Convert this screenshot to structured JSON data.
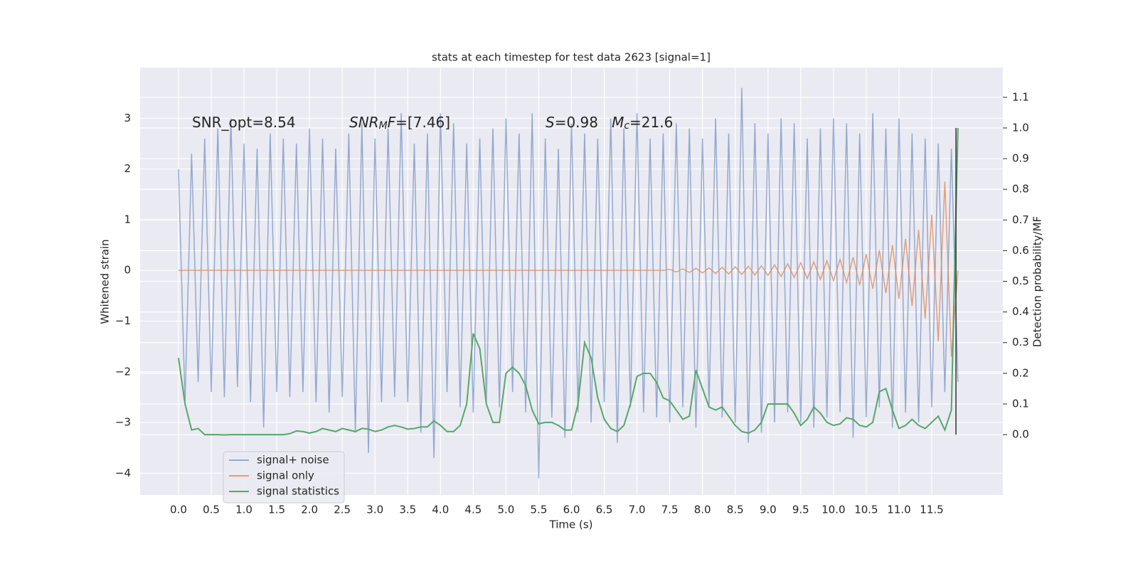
{
  "chart_data": {
    "type": "line",
    "title": "stats at each timestep for test data 2623 [signal=1]",
    "x_label": "Time (s)",
    "y_label": "Whitened strain",
    "y2_label": "Detection probability/MF",
    "background": "#eaeaf2",
    "grid": true,
    "legend": "lower left",
    "xlim": [
      -0.586,
      12.586
    ],
    "ylim": [
      -4.43,
      4.0
    ],
    "y2lim": [
      -0.197,
      1.197
    ],
    "xticks": [
      {
        "value": 0,
        "label": "0.0"
      },
      0.5,
      {
        "value": 1,
        "label": "1.0"
      },
      1.5,
      {
        "value": 2,
        "label": "2.0"
      },
      2.5,
      {
        "value": 3,
        "label": "3.0"
      },
      3.5,
      {
        "value": 4,
        "label": "4.0"
      },
      4.5,
      {
        "value": 5,
        "label": "5.0"
      },
      5.5,
      {
        "value": 6,
        "label": "6.0"
      },
      6.5,
      {
        "value": 7,
        "label": "7.0"
      },
      7.5,
      {
        "value": 8,
        "label": "8.0"
      },
      8.5,
      {
        "value": 9,
        "label": "9.0"
      },
      9.5,
      {
        "value": 10,
        "label": "10.0"
      },
      10.5,
      {
        "value": 11,
        "label": "11.0"
      },
      11.5
    ],
    "yticks": [
      {
        "value": -4,
        "label": "−4"
      },
      {
        "value": -3,
        "label": "−3"
      },
      {
        "value": -2,
        "label": "−2"
      },
      {
        "value": -1,
        "label": "−1"
      },
      0,
      1,
      2,
      3
    ],
    "y2ticks": [
      {
        "value": 0,
        "label": "0.0"
      },
      0.1,
      0.2,
      0.3,
      0.4,
      0.5,
      0.6,
      0.7,
      0.8,
      0.9,
      {
        "value": 1,
        "label": "1.0"
      },
      1.1
    ],
    "annotations": [
      {
        "parts": [
          {
            "text": "SNR_opt=8.54"
          }
        ]
      },
      {
        "parts": [
          {
            "text": "SNR",
            "italic": true
          },
          {
            "text": "M",
            "italic": true,
            "sub": true
          },
          {
            "text": "F",
            "italic": true
          },
          {
            "text": "=[7.46]"
          }
        ]
      },
      {
        "parts": [
          {
            "text": "S",
            "italic": true
          },
          {
            "text": "=0.98   "
          },
          {
            "text": "M",
            "italic": true
          },
          {
            "text": "c",
            "italic": true,
            "sub": true
          },
          {
            "text": "=21.6"
          }
        ]
      }
    ],
    "vline": {
      "x": 11.87,
      "y2range": [
        0,
        1
      ],
      "color": "#333333"
    },
    "x": [
      0.0,
      0.1,
      0.2,
      0.3,
      0.4,
      0.5,
      0.6,
      0.7,
      0.8,
      0.9,
      1.0,
      1.1,
      1.2,
      1.3,
      1.4,
      1.5,
      1.6,
      1.7,
      1.8,
      1.9,
      2.0,
      2.1,
      2.2,
      2.3,
      2.4,
      2.5,
      2.6,
      2.7,
      2.8,
      2.9,
      3.0,
      3.1,
      3.2,
      3.3,
      3.4,
      3.5,
      3.6,
      3.7,
      3.8,
      3.9,
      4.0,
      4.1,
      4.2,
      4.3,
      4.4,
      4.5,
      4.6,
      4.7,
      4.8,
      4.9,
      5.0,
      5.1,
      5.2,
      5.3,
      5.4,
      5.5,
      5.6,
      5.7,
      5.8,
      5.9,
      6.0,
      6.1,
      6.2,
      6.3,
      6.4,
      6.5,
      6.6,
      6.7,
      6.8,
      6.9,
      7.0,
      7.1,
      7.2,
      7.3,
      7.4,
      7.5,
      7.6,
      7.7,
      7.8,
      7.9,
      8.0,
      8.1,
      8.2,
      8.3,
      8.4,
      8.5,
      8.6,
      8.7,
      8.8,
      8.9,
      9.0,
      9.1,
      9.2,
      9.3,
      9.4,
      9.5,
      9.6,
      9.7,
      9.8,
      9.9,
      10.0,
      10.1,
      10.2,
      10.3,
      10.4,
      10.5,
      10.6,
      10.7,
      10.8,
      10.9,
      11.0,
      11.1,
      11.2,
      11.3,
      11.4,
      11.5,
      11.6,
      11.7,
      11.8,
      11.9
    ],
    "series": [
      {
        "name": "signal+ noise",
        "color": "#4c72b0",
        "opacity": 0.55,
        "values": [
          2.0,
          -2.6,
          2.3,
          -2.2,
          2.6,
          -2.4,
          2.8,
          -2.5,
          3.0,
          -2.3,
          2.5,
          -2.6,
          2.4,
          -3.1,
          2.7,
          -2.4,
          2.6,
          -2.5,
          2.5,
          -2.4,
          2.8,
          -2.6,
          2.6,
          -2.8,
          2.4,
          -2.5,
          2.7,
          -3.2,
          2.9,
          -3.6,
          2.6,
          -2.6,
          2.8,
          -2.5,
          3.1,
          -2.6,
          2.5,
          -3.2,
          2.7,
          -3.7,
          3.1,
          -2.4,
          2.9,
          -2.7,
          2.5,
          -2.8,
          2.6,
          -2.6,
          2.8,
          -2.7,
          3.0,
          -2.4,
          2.7,
          -2.8,
          3.1,
          -4.1,
          2.6,
          -2.9,
          2.4,
          -3.3,
          2.9,
          -2.8,
          2.7,
          -3.0,
          2.6,
          -2.6,
          3.0,
          -3.4,
          2.8,
          -2.7,
          3.1,
          -2.8,
          2.6,
          -2.9,
          2.7,
          -3.0,
          2.9,
          -2.7,
          2.8,
          -3.1,
          2.6,
          -2.7,
          3.0,
          -2.9,
          2.7,
          -3.0,
          3.6,
          -3.4,
          2.9,
          -3.2,
          2.7,
          -3.0,
          3.0,
          -2.8,
          2.9,
          -3.0,
          2.6,
          -3.1,
          2.8,
          -2.9,
          3.0,
          -2.8,
          2.9,
          -3.3,
          2.7,
          -2.9,
          3.1,
          -2.7,
          2.8,
          -3.1,
          3.0,
          -2.8,
          2.7,
          -3.0,
          2.6,
          -2.7,
          2.5,
          -2.4,
          2.4,
          -2.2
        ]
      },
      {
        "name": "signal only",
        "color": "#dd8452",
        "opacity": 0.75,
        "values": [
          0,
          0,
          0,
          0,
          0,
          0,
          0,
          0,
          0,
          0,
          0,
          0,
          0,
          0,
          0,
          0,
          0,
          0,
          0,
          0,
          0,
          0,
          0,
          0,
          0,
          0,
          0,
          0,
          0,
          0,
          0,
          0,
          0,
          0,
          0,
          0,
          0,
          0,
          0,
          0,
          0,
          0,
          0,
          0,
          0,
          0,
          0,
          0,
          0,
          0,
          0,
          0,
          0,
          0,
          0,
          0,
          0,
          0,
          0,
          0,
          0,
          0,
          0,
          0,
          0,
          0,
          0,
          0,
          0,
          0,
          0,
          0,
          0,
          0,
          0,
          0.02,
          -0.03,
          0.03,
          -0.04,
          0.04,
          -0.05,
          0.05,
          -0.06,
          0.06,
          -0.07,
          0.07,
          -0.08,
          0.08,
          -0.09,
          0.09,
          -0.1,
          0.11,
          -0.12,
          0.13,
          -0.14,
          0.15,
          -0.16,
          0.17,
          -0.18,
          0.19,
          -0.2,
          0.22,
          -0.24,
          0.26,
          -0.29,
          0.32,
          -0.36,
          0.4,
          -0.45,
          0.5,
          -0.56,
          0.62,
          -0.7,
          0.8,
          -0.95,
          1.1,
          -1.4,
          1.75,
          -1.7,
          0
        ]
      },
      {
        "name": "signal statistics",
        "color": "#55a868",
        "opacity": 1,
        "axis": "y2",
        "values": [
          0.25,
          0.1,
          0.015,
          0.02,
          0.0,
          0.0,
          0.0,
          -0.001,
          0.0,
          0.0,
          0.0,
          0.0,
          0.0,
          0.0,
          0.0,
          0.0,
          0.0,
          0.003,
          0.012,
          0.01,
          0.005,
          0.01,
          0.02,
          0.015,
          0.01,
          0.02,
          0.015,
          0.01,
          0.02,
          0.018,
          0.01,
          0.015,
          0.025,
          0.03,
          0.025,
          0.018,
          0.02,
          0.025,
          0.025,
          0.045,
          0.03,
          0.01,
          0.01,
          0.03,
          0.1,
          0.33,
          0.28,
          0.1,
          0.04,
          0.04,
          0.2,
          0.22,
          0.2,
          0.16,
          0.08,
          0.035,
          0.04,
          0.04,
          0.03,
          0.015,
          0.015,
          0.1,
          0.3,
          0.25,
          0.12,
          0.05,
          0.02,
          0.01,
          0.03,
          0.1,
          0.19,
          0.2,
          0.2,
          0.17,
          0.12,
          0.11,
          0.08,
          0.05,
          0.06,
          0.21,
          0.15,
          0.09,
          0.08,
          0.09,
          0.06,
          0.03,
          0.01,
          0.005,
          0.015,
          0.04,
          0.1,
          0.1,
          0.1,
          0.1,
          0.07,
          0.03,
          0.05,
          0.09,
          0.07,
          0.04,
          0.03,
          0.035,
          0.055,
          0.05,
          0.03,
          0.025,
          0.04,
          0.14,
          0.15,
          0.08,
          0.02,
          0.03,
          0.05,
          0.03,
          0.02,
          0.04,
          0.06,
          0.015,
          0.08,
          1.0
        ]
      }
    ]
  }
}
